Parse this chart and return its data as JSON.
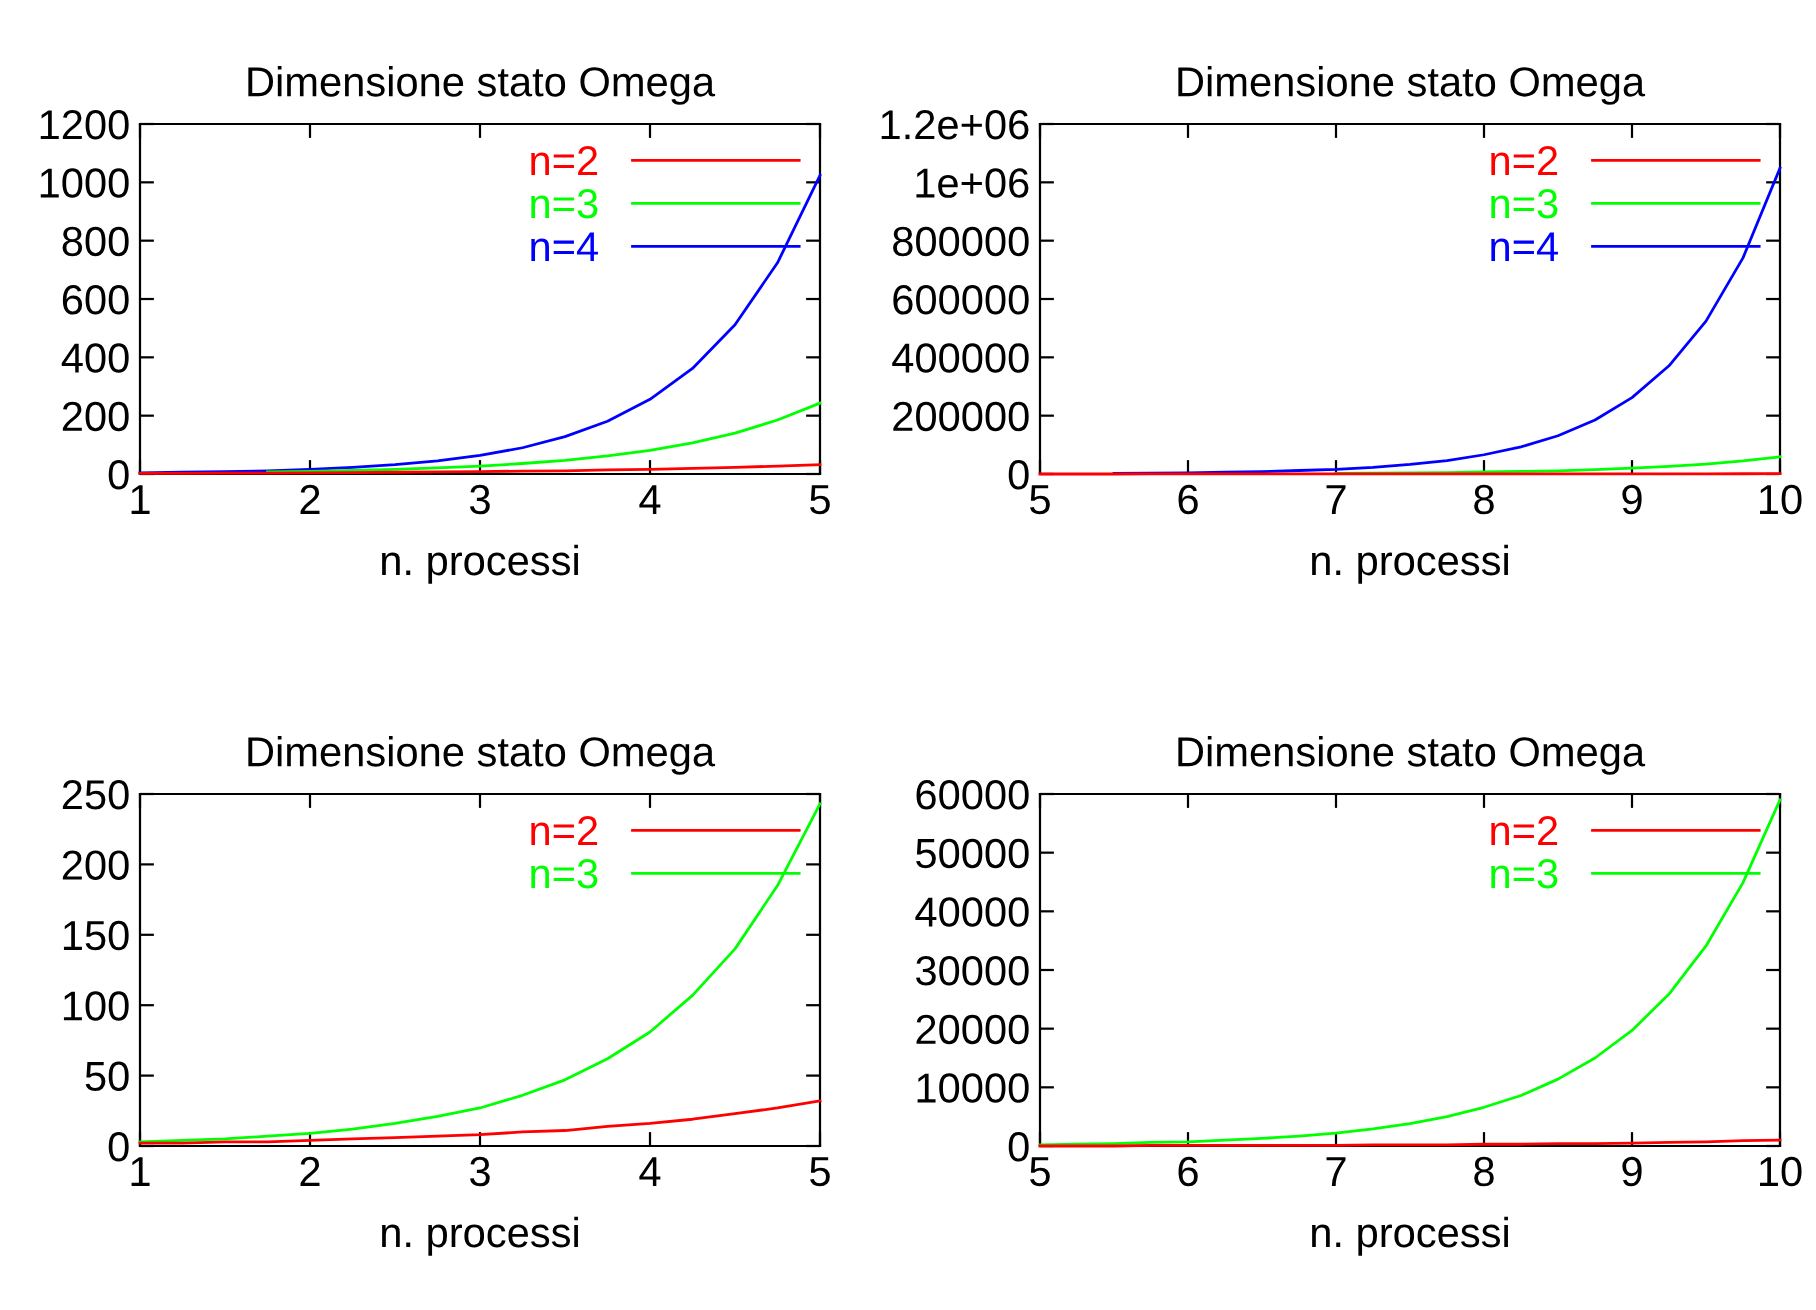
{
  "chart_data": [
    {
      "type": "line",
      "title": "Dimensione stato Omega",
      "xlabel": "n. processi",
      "xlim": [
        1,
        5
      ],
      "xticks": [
        1,
        2,
        3,
        4,
        5
      ],
      "ylim": [
        0,
        1200
      ],
      "yticks": [
        0,
        200,
        400,
        600,
        800,
        1000,
        1200
      ],
      "grid": false,
      "legend": "top right",
      "x": [
        1,
        1.25,
        1.5,
        1.75,
        2,
        2.25,
        2.5,
        2.75,
        3,
        3.25,
        3.5,
        3.75,
        4,
        4.25,
        4.5,
        4.75,
        5
      ],
      "series": [
        {
          "name": "n=2",
          "color": "#ff0000",
          "values": [
            2,
            2,
            3,
            3,
            4,
            5,
            6,
            7,
            8,
            10,
            11,
            14,
            16,
            19,
            23,
            27,
            32
          ]
        },
        {
          "name": "n=3",
          "color": "#00ff00",
          "values": [
            null,
            null,
            null,
            7,
            9,
            12,
            16,
            21,
            27,
            36,
            47,
            62,
            81,
            107,
            140,
            185,
            243
          ]
        },
        {
          "name": "n=4",
          "color": "#0000ff",
          "values": [
            4,
            6,
            8,
            11,
            16,
            23,
            32,
            45,
            64,
            90,
            128,
            181,
            256,
            362,
            512,
            724,
            1024
          ]
        }
      ]
    },
    {
      "type": "line",
      "title": "Dimensione stato Omega",
      "xlabel": "n. processi",
      "xlim": [
        5,
        10
      ],
      "xticks": [
        5,
        6,
        7,
        8,
        9,
        10
      ],
      "ylim": [
        0,
        1200000
      ],
      "yticks": [
        0,
        200000,
        400000,
        600000,
        800000,
        {
          "value": 1000000,
          "label": "1e+06"
        },
        {
          "value": 1200000,
          "label": "1.2e+06"
        }
      ],
      "grid": false,
      "legend": "top right",
      "x": [
        5,
        5.25,
        5.5,
        5.75,
        6,
        6.25,
        6.5,
        6.75,
        7,
        7.25,
        7.5,
        7.75,
        8,
        8.25,
        8.5,
        8.75,
        9,
        9.25,
        9.5,
        9.75,
        10
      ],
      "series": [
        {
          "name": "n=2",
          "color": "#ff0000",
          "values": [
            0,
            0,
            0,
            100,
            100,
            100,
            100,
            100,
            100,
            200,
            200,
            200,
            300,
            300,
            400,
            400,
            500,
            600,
            700,
            900,
            1000
          ]
        },
        {
          "name": "n=3",
          "color": "#00ff00",
          "values": [
            null,
            null,
            null,
            null,
            null,
            null,
            null,
            null,
            2000,
            3000,
            4000,
            5000,
            7000,
            9000,
            11000,
            15000,
            20000,
            26000,
            34000,
            45000,
            59000
          ]
        },
        {
          "name": "n=4",
          "color": "#0000ff",
          "values": [
            null,
            null,
            2000,
            3000,
            4000,
            6000,
            8000,
            12000,
            16000,
            23000,
            33000,
            46000,
            66000,
            93000,
            131000,
            185000,
            262000,
            371000,
            524000,
            741000,
            1049000
          ]
        }
      ]
    },
    {
      "type": "line",
      "title": "Dimensione stato Omega",
      "xlabel": "n. processi",
      "xlim": [
        1,
        5
      ],
      "xticks": [
        1,
        2,
        3,
        4,
        5
      ],
      "ylim": [
        0,
        250
      ],
      "yticks": [
        0,
        50,
        100,
        150,
        200,
        250
      ],
      "grid": false,
      "legend": "top right",
      "x": [
        1,
        1.25,
        1.5,
        1.75,
        2,
        2.25,
        2.5,
        2.75,
        3,
        3.25,
        3.5,
        3.75,
        4,
        4.25,
        4.5,
        4.75,
        5
      ],
      "series": [
        {
          "name": "n=2",
          "color": "#ff0000",
          "values": [
            2,
            2,
            3,
            3,
            4,
            5,
            6,
            7,
            8,
            10,
            11,
            14,
            16,
            19,
            23,
            27,
            32
          ]
        },
        {
          "name": "n=3",
          "color": "#00ff00",
          "values": [
            3,
            4,
            5,
            7,
            9,
            12,
            16,
            21,
            27,
            36,
            47,
            62,
            81,
            107,
            140,
            185,
            243
          ]
        }
      ]
    },
    {
      "type": "line",
      "title": "Dimensione stato Omega",
      "xlabel": "n. processi",
      "xlim": [
        5,
        10
      ],
      "xticks": [
        5,
        6,
        7,
        8,
        9,
        10
      ],
      "ylim": [
        0,
        60000
      ],
      "yticks": [
        0,
        10000,
        20000,
        30000,
        40000,
        50000,
        60000
      ],
      "grid": false,
      "legend": "top right",
      "x": [
        5,
        5.25,
        5.5,
        5.75,
        6,
        6.25,
        6.5,
        6.75,
        7,
        7.25,
        7.5,
        7.75,
        8,
        8.25,
        8.5,
        8.75,
        9,
        9.25,
        9.5,
        9.75,
        10
      ],
      "series": [
        {
          "name": "n=2",
          "color": "#ff0000",
          "values": [
            0,
            0,
            0,
            100,
            100,
            100,
            100,
            100,
            100,
            200,
            200,
            200,
            300,
            300,
            400,
            400,
            500,
            600,
            700,
            900,
            1000
          ]
        },
        {
          "name": "n=3",
          "color": "#00ff00",
          "values": [
            200,
            300,
            400,
            600,
            700,
            1000,
            1300,
            1700,
            2200,
            2900,
            3800,
            5000,
            6600,
            8600,
            11400,
            15000,
            19700,
            25900,
            34100,
            44900,
            59000
          ]
        }
      ]
    }
  ]
}
